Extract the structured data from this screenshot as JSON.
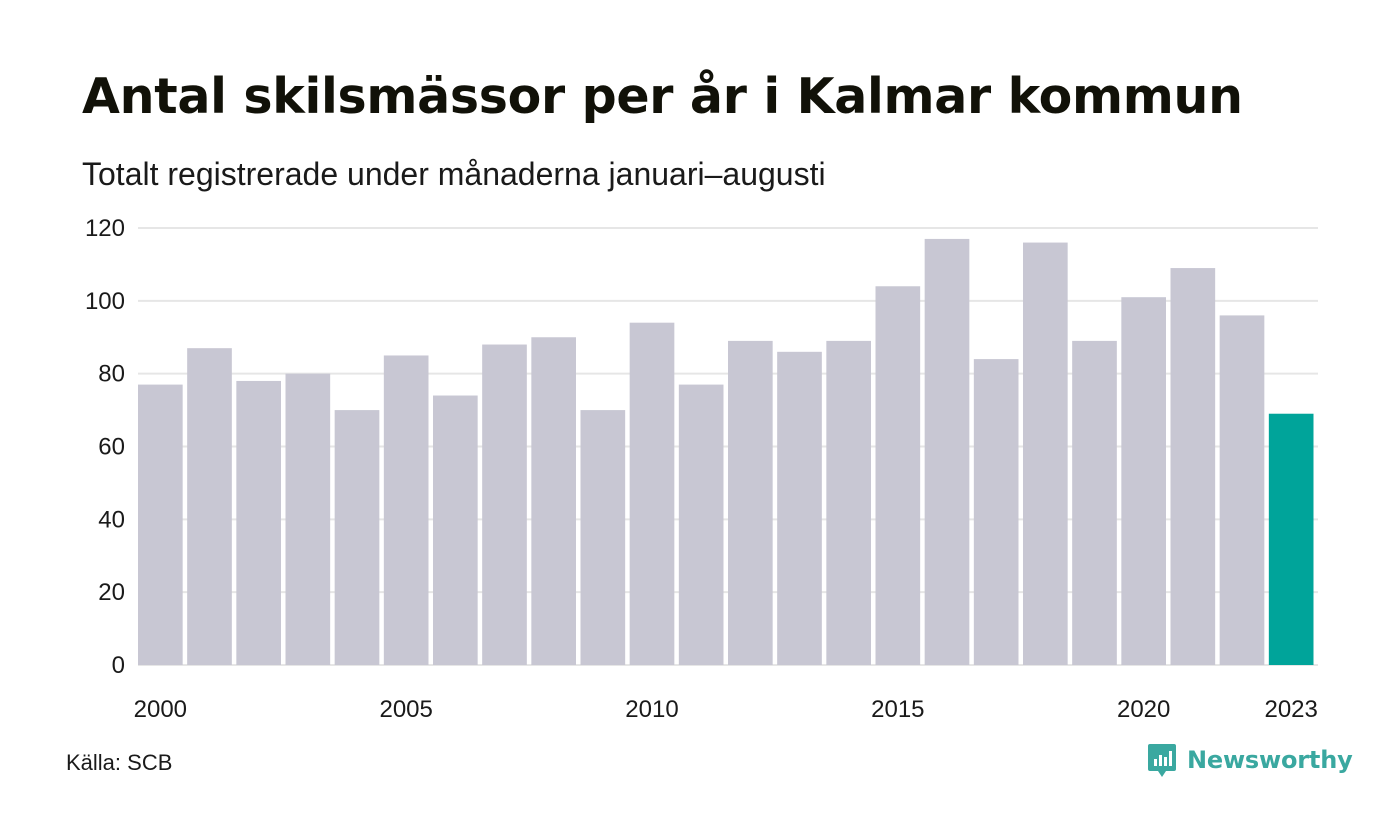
{
  "title": "Antal skilsmässor per år i Kalmar kommun",
  "subtitle": "Totalt registrerade under månaderna januari–augusti",
  "source": "Källa: SCB",
  "brand": {
    "name": "Newsworthy",
    "icon": "newsworthy-logo-icon"
  },
  "colors": {
    "bar": "#c8c7d3",
    "highlight": "#00a49a",
    "grid": "#e6e6e6",
    "brand": "#3aa8a0"
  },
  "chart_data": {
    "type": "bar",
    "categories": [
      "2000",
      "2001",
      "2002",
      "2003",
      "2004",
      "2005",
      "2006",
      "2007",
      "2008",
      "2009",
      "2010",
      "2011",
      "2012",
      "2013",
      "2014",
      "2015",
      "2016",
      "2017",
      "2018",
      "2019",
      "2020",
      "2021",
      "2022",
      "2023"
    ],
    "values": [
      77,
      87,
      78,
      80,
      70,
      85,
      74,
      88,
      90,
      70,
      94,
      77,
      89,
      86,
      89,
      104,
      117,
      84,
      116,
      89,
      101,
      109,
      96,
      69
    ],
    "highlight": "2023",
    "x_tick_labels": [
      "2000",
      "2005",
      "2010",
      "2015",
      "2020",
      "2023"
    ],
    "y_ticks": [
      0,
      20,
      40,
      60,
      80,
      100,
      120
    ],
    "ylim": [
      0,
      120
    ],
    "grid": true,
    "xlabel": "",
    "ylabel": ""
  }
}
